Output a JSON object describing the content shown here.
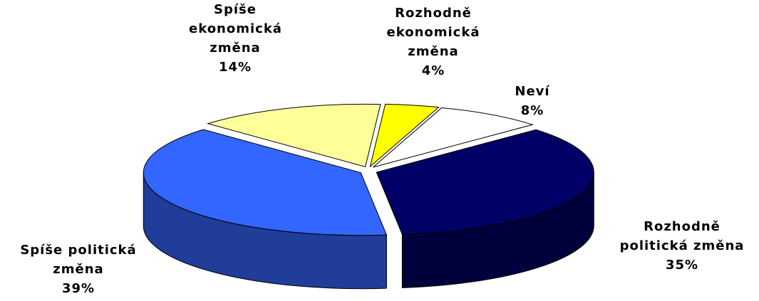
{
  "chart_data": {
    "type": "pie3d",
    "categories": [
      "Rozhodně ekonomická změna",
      "Neví",
      "Rozhodně politická změna",
      "Spíše politická změna",
      "Spíše ekonomická změna"
    ],
    "values": [
      4,
      8,
      35,
      39,
      14
    ],
    "value_labels": [
      "4%",
      "8%",
      "35%",
      "39%",
      "14%"
    ],
    "colors": [
      "#ffff00",
      "#ffffff",
      "#000066",
      "#3366ff",
      "#ffff99"
    ]
  }
}
